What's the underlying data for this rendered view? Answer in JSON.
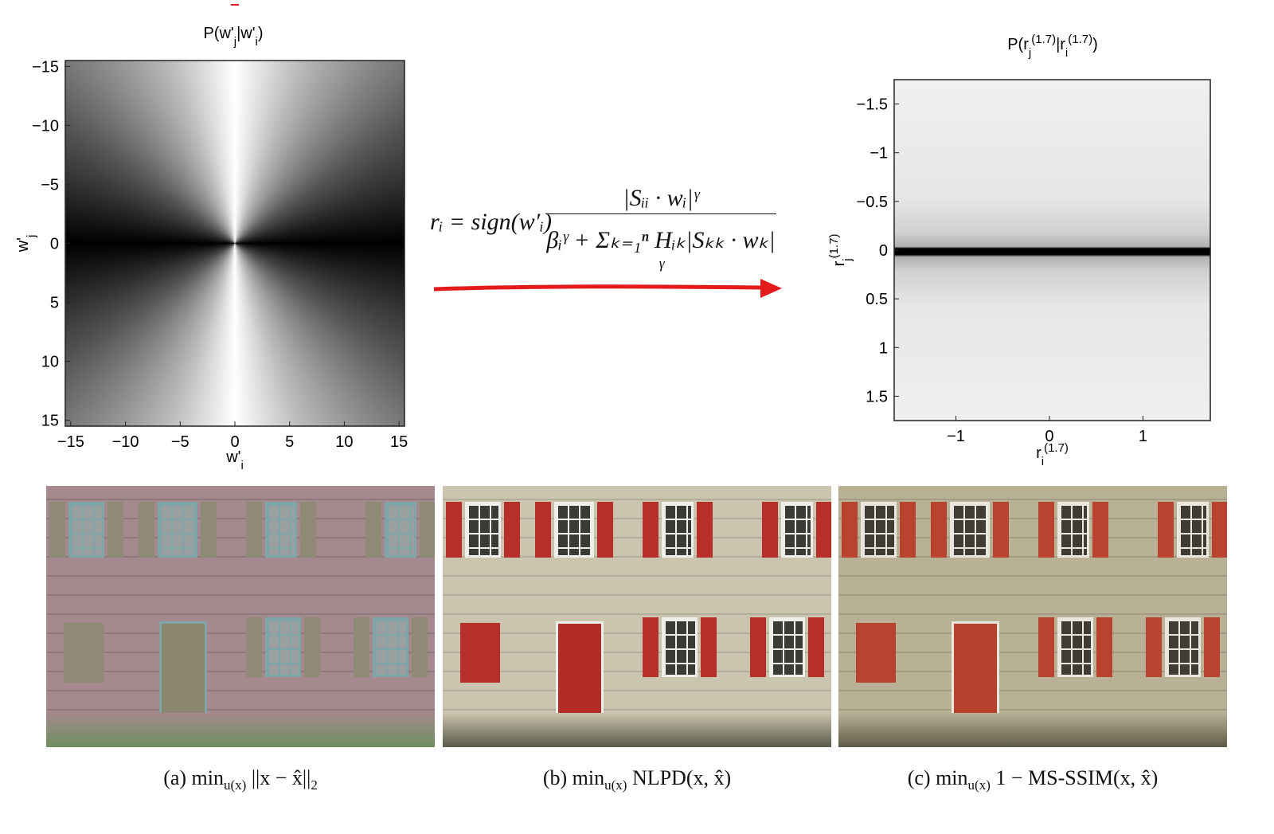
{
  "left_plot": {
    "title": [
      {
        "text": "P(w'",
        "pos": "base"
      },
      {
        "text": "j",
        "pos": "sub"
      },
      {
        "text": "|w'",
        "pos": "base"
      },
      {
        "text": "i",
        "pos": "sub"
      },
      {
        "text": ")",
        "pos": "base"
      }
    ],
    "xlabel": [
      {
        "text": "w'",
        "pos": "base"
      },
      {
        "text": "i",
        "pos": "sub"
      }
    ],
    "ylabel": [
      {
        "text": "w'",
        "pos": "base"
      },
      {
        "text": "j",
        "pos": "sub"
      }
    ],
    "xlim": [
      -15.5,
      15.5
    ],
    "ylim": [
      -15.5,
      15.5
    ],
    "xticks": [
      {
        "value": -15,
        "label": "−15"
      },
      {
        "value": -10,
        "label": "−10"
      },
      {
        "value": -5,
        "label": "−5"
      },
      0,
      5,
      10,
      15
    ],
    "yticks": [
      {
        "value": -15,
        "label": "−15"
      },
      {
        "value": -10,
        "label": "−10"
      },
      {
        "value": -5,
        "label": "−5"
      },
      0,
      5,
      10,
      15
    ]
  },
  "equation": {
    "lhs": "rᵢ = sign(w′ᵢ)",
    "numerator": "|Sᵢᵢ · wᵢ|ᵞ",
    "denominator": "βᵢᵞ + Σₖ₌₁ⁿ Hᵢₖ|Sₖₖ · wₖ|ᵞ"
  },
  "right_plot": {
    "title": [
      {
        "text": "P(r",
        "pos": "base"
      },
      {
        "text": "j",
        "pos": "sub"
      },
      {
        "text": "(1.7)",
        "pos": "sup"
      },
      {
        "text": "|r",
        "pos": "base"
      },
      {
        "text": "i",
        "pos": "sub"
      },
      {
        "text": "(1.7)",
        "pos": "sup"
      },
      {
        "text": ")",
        "pos": "base"
      }
    ],
    "xlabel": [
      {
        "text": "r",
        "pos": "base"
      },
      {
        "text": "i",
        "pos": "sub"
      },
      {
        "text": "(1.7)",
        "pos": "sup"
      }
    ],
    "ylabel": [
      {
        "text": "r",
        "pos": "base"
      },
      {
        "text": "j",
        "pos": "sub"
      },
      {
        "text": "(1.7)",
        "pos": "sup"
      }
    ],
    "xlim": [
      -1.66,
      1.72
    ],
    "ylim": [
      -1.75,
      1.75
    ],
    "xticks": [
      {
        "value": -1,
        "label": "−1"
      },
      0,
      1
    ],
    "yticks": [
      {
        "value": -1.5,
        "label": "−1.5"
      },
      {
        "value": -1,
        "label": "−1"
      },
      {
        "value": -0.5,
        "label": "−0.5"
      },
      0,
      0.5,
      1,
      1.5
    ]
  },
  "captions": [
    [
      {
        "text": "(a) min",
        "pos": "base"
      },
      {
        "text": "u(x)",
        "pos": "sub"
      },
      {
        "text": " ||x − x̂||",
        "pos": "base"
      },
      {
        "text": "2",
        "pos": "sub"
      }
    ],
    [
      {
        "text": "(b) min",
        "pos": "base"
      },
      {
        "text": "u(x)",
        "pos": "sub"
      },
      {
        "text": " NLPD(x, x̂)",
        "pos": "base"
      }
    ],
    [
      {
        "text": "(c) min",
        "pos": "base"
      },
      {
        "text": "u(x)",
        "pos": "sub"
      },
      {
        "text": " 1 − MS-SSIM(x, x̂)",
        "pos": "base"
      }
    ]
  ]
}
